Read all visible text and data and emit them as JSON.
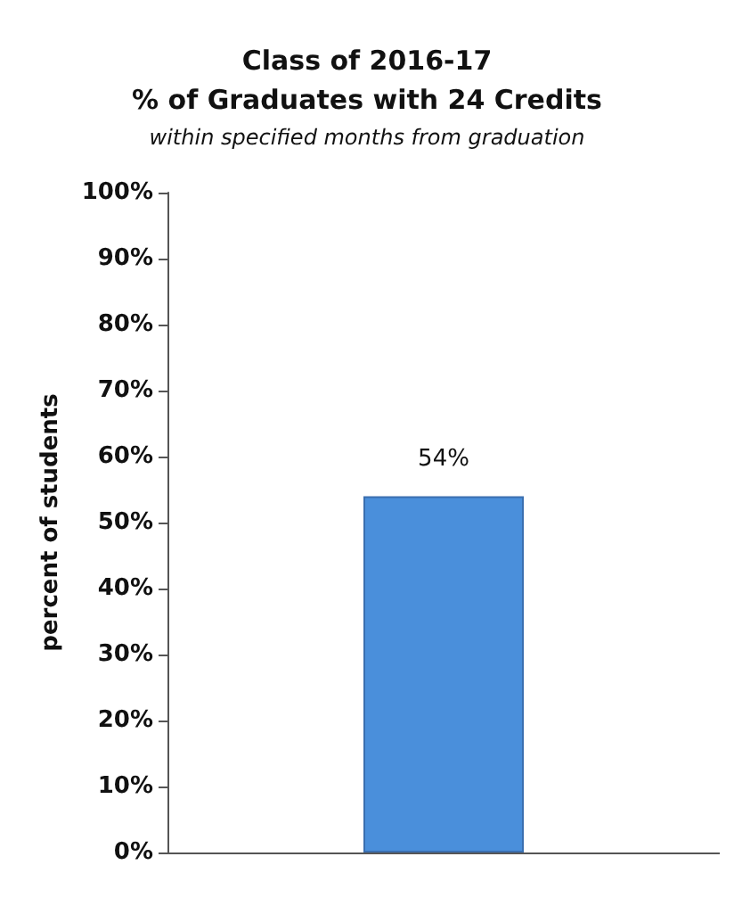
{
  "chart_data": {
    "type": "bar",
    "title": "Class of 2016-17\n% of Graduates with 24 Credits",
    "subtitle": "within specified months from graduation",
    "ylabel": "percent of students",
    "categories": [
      null
    ],
    "values": [
      54
    ],
    "value_labels": [
      "54%"
    ],
    "color": "#4a8fdb",
    "ylim": [
      0,
      100
    ],
    "yticks": [
      {
        "value": 0,
        "label": "0%"
      },
      {
        "value": 10,
        "label": "10%"
      },
      {
        "value": 20,
        "label": "20%"
      },
      {
        "value": 30,
        "label": "30%"
      },
      {
        "value": 40,
        "label": "40%"
      },
      {
        "value": 50,
        "label": "50%"
      },
      {
        "value": 60,
        "label": "60%"
      },
      {
        "value": 70,
        "label": "70%"
      },
      {
        "value": 80,
        "label": "80%"
      },
      {
        "value": 90,
        "label": "90%"
      },
      {
        "value": 100,
        "label": "100%"
      }
    ],
    "grid": false
  }
}
